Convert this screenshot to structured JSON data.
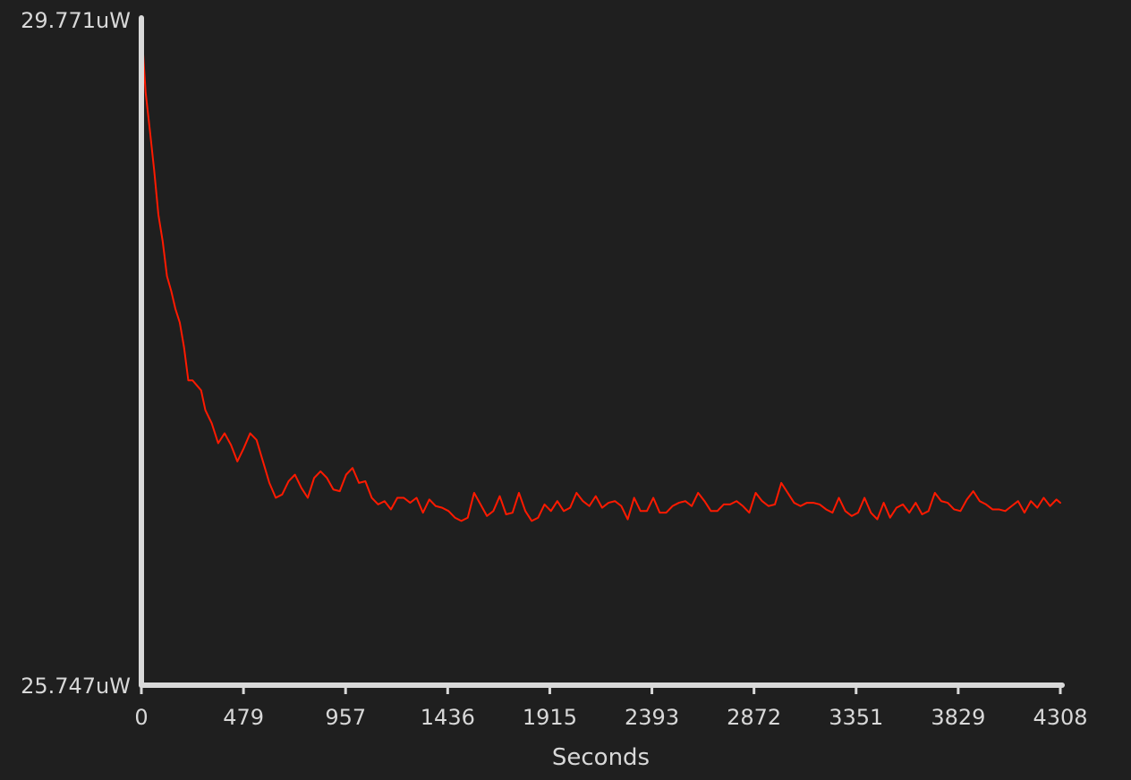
{
  "chart_data": {
    "type": "line",
    "title": "",
    "xlabel": "Seconds",
    "ylabel": "",
    "xlim": [
      0,
      4308
    ],
    "ylim": [
      25.747,
      29.771
    ],
    "x_ticks": [
      "0",
      "479",
      "957",
      "1436",
      "1915",
      "2393",
      "2872",
      "3351",
      "3829",
      "4308"
    ],
    "y_ticks": [
      "29.771uW",
      "25.747uW"
    ],
    "grid": false,
    "legend": "none",
    "colors": {
      "background": "#1f1f1f",
      "axis": "#d9d9d9",
      "text": "#d8d8d8",
      "series": "#ff1a00"
    },
    "series": [
      {
        "x": [
          0,
          20,
          40,
          60,
          80,
          100,
          120,
          140,
          160,
          180,
          200,
          220,
          240,
          260,
          280,
          300,
          330,
          360,
          390,
          420,
          450,
          480,
          510,
          540,
          570,
          600,
          630,
          660,
          690,
          720,
          750,
          780,
          810,
          840,
          870,
          900,
          930,
          960,
          990,
          1020,
          1050,
          1080,
          1110,
          1140,
          1170,
          1200,
          1230,
          1260,
          1290,
          1320,
          1350,
          1380,
          1410,
          1440,
          1470,
          1500,
          1530,
          1560,
          1590,
          1620,
          1650,
          1680,
          1710,
          1740,
          1770,
          1800,
          1830,
          1860,
          1890,
          1920,
          1950,
          1980,
          2010,
          2040,
          2070,
          2100,
          2130,
          2160,
          2190,
          2220,
          2250,
          2280,
          2310,
          2340,
          2370,
          2400,
          2430,
          2460,
          2490,
          2520,
          2550,
          2580,
          2610,
          2640,
          2670,
          2700,
          2730,
          2760,
          2790,
          2820,
          2850,
          2880,
          2910,
          2940,
          2970,
          3000,
          3030,
          3060,
          3090,
          3120,
          3150,
          3180,
          3210,
          3240,
          3270,
          3300,
          3330,
          3360,
          3390,
          3420,
          3450,
          3480,
          3510,
          3540,
          3570,
          3600,
          3630,
          3660,
          3690,
          3720,
          3750,
          3780,
          3810,
          3840,
          3870,
          3900,
          3930,
          3960,
          3990,
          4020,
          4050,
          4080,
          4110,
          4140,
          4170,
          4200,
          4230,
          4260,
          4290,
          4308
        ],
        "y": [
          29.73,
          29.33,
          29.1,
          28.86,
          28.59,
          28.43,
          28.22,
          28.13,
          28.02,
          27.94,
          27.79,
          27.59,
          27.59,
          27.56,
          27.53,
          27.41,
          27.33,
          27.21,
          27.27,
          27.2,
          27.1,
          27.18,
          27.27,
          27.23,
          27.1,
          26.97,
          26.88,
          26.9,
          26.98,
          27.02,
          26.94,
          26.88,
          27.0,
          27.04,
          27.0,
          26.93,
          26.92,
          27.02,
          27.06,
          26.97,
          26.98,
          26.88,
          26.84,
          26.86,
          26.81,
          26.88,
          26.88,
          26.85,
          26.88,
          26.79,
          26.87,
          26.83,
          26.82,
          26.8,
          26.76,
          26.74,
          26.76,
          26.91,
          26.84,
          26.77,
          26.8,
          26.89,
          26.78,
          26.79,
          26.91,
          26.8,
          26.74,
          26.76,
          26.84,
          26.8,
          26.86,
          26.8,
          26.82,
          26.91,
          26.86,
          26.83,
          26.89,
          26.82,
          26.85,
          26.86,
          26.83,
          26.75,
          26.88,
          26.8,
          26.8,
          26.88,
          26.79,
          26.79,
          26.83,
          26.85,
          26.86,
          26.83,
          26.91,
          26.86,
          26.8,
          26.8,
          26.84,
          26.84,
          26.86,
          26.83,
          26.79,
          26.91,
          26.86,
          26.83,
          26.84,
          26.97,
          26.91,
          26.85,
          26.83,
          26.85,
          26.85,
          26.84,
          26.81,
          26.79,
          26.88,
          26.8,
          26.77,
          26.79,
          26.88,
          26.79,
          26.75,
          26.85,
          26.76,
          26.82,
          26.84,
          26.79,
          26.85,
          26.78,
          26.8,
          26.91,
          26.86,
          26.85,
          26.81,
          26.8,
          26.87,
          26.92,
          26.86,
          26.84,
          26.81,
          26.81,
          26.8,
          26.83,
          26.86,
          26.79,
          26.86,
          26.82,
          26.88,
          26.83,
          26.87,
          26.85
        ]
      }
    ]
  }
}
